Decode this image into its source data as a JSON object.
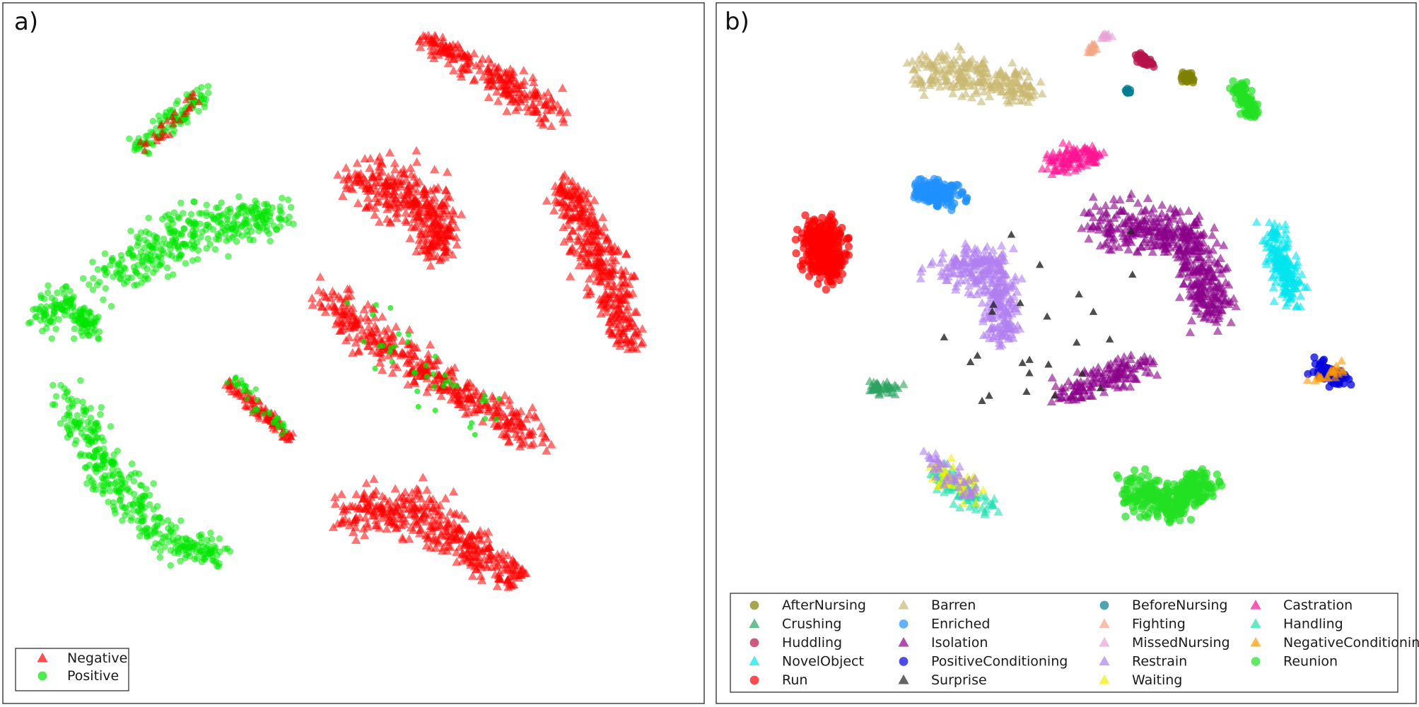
{
  "chart_data": [
    {
      "type": "scatter",
      "panel_label": "a)",
      "title": "",
      "xlabel": "",
      "ylabel": "",
      "axes_visible": false,
      "grid": false,
      "legend_position": "bottom-left",
      "series": [
        {
          "name": "Negative",
          "marker": "triangle",
          "color": "#ff0000"
        },
        {
          "name": "Positive",
          "marker": "circle",
          "color": "#00e600"
        }
      ]
    },
    {
      "type": "scatter",
      "panel_label": "b)",
      "title": "",
      "xlabel": "",
      "ylabel": "",
      "axes_visible": false,
      "grid": false,
      "legend_position": "bottom",
      "series": [
        {
          "name": "AfterNursing",
          "marker": "circle",
          "color": "#808000"
        },
        {
          "name": "Crushing",
          "marker": "triangle",
          "color": "#2ca25f"
        },
        {
          "name": "Huddling",
          "marker": "circle",
          "color": "#b5124b"
        },
        {
          "name": "NovelObject",
          "marker": "triangle",
          "color": "#00e5ee"
        },
        {
          "name": "Run",
          "marker": "circle",
          "color": "#ff0000"
        },
        {
          "name": "Barren",
          "marker": "triangle",
          "color": "#c8b870"
        },
        {
          "name": "Enriched",
          "marker": "circle",
          "color": "#1e90ff"
        },
        {
          "name": "Isolation",
          "marker": "triangle",
          "color": "#8b008b"
        },
        {
          "name": "PositiveConditioning",
          "marker": "circle",
          "color": "#0000dd"
        },
        {
          "name": "Surprise",
          "marker": "triangle",
          "color": "#222222"
        },
        {
          "name": "BeforeNursing",
          "marker": "circle",
          "color": "#007c91"
        },
        {
          "name": "Fighting",
          "marker": "triangle",
          "color": "#f4a582"
        },
        {
          "name": "MissedNursing",
          "marker": "triangle",
          "color": "#e7a3d6"
        },
        {
          "name": "Restrain",
          "marker": "triangle",
          "color": "#b07ef0"
        },
        {
          "name": "Waiting",
          "marker": "triangle",
          "color": "#f0f000"
        },
        {
          "name": "Castration",
          "marker": "triangle",
          "color": "#ff1493"
        },
        {
          "name": "Handling",
          "marker": "triangle",
          "color": "#20e0b0"
        },
        {
          "name": "NegativeConditioning",
          "marker": "triangle",
          "color": "#ff9800"
        },
        {
          "name": "Reunion",
          "marker": "circle",
          "color": "#22e022"
        }
      ]
    }
  ]
}
